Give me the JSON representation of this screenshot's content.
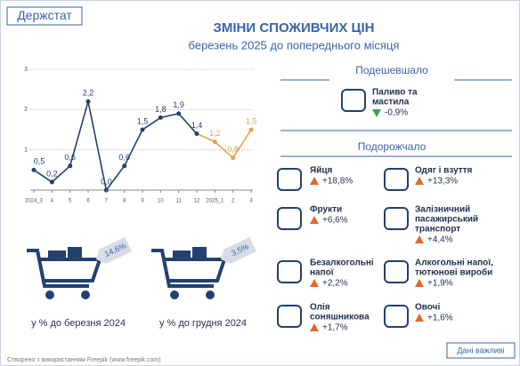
{
  "header": {
    "brand": "Держстат",
    "title": "ЗМІНИ СПОЖИВЧИХ ЦІН",
    "subtitle": "березень 2025 до попереднього місяця"
  },
  "chart_data": {
    "type": "line",
    "categories": [
      "2024_3",
      "4",
      "5",
      "6",
      "7",
      "8",
      "9",
      "10",
      "11",
      "12",
      "2025_1",
      "2",
      "3"
    ],
    "values": [
      0.5,
      0.2,
      0.6,
      2.2,
      0.0,
      0.6,
      1.5,
      1.8,
      1.9,
      1.4,
      1.2,
      0.8,
      1.5
    ],
    "value_labels": [
      "0,5",
      "0,2",
      "0,6",
      "2,2",
      "0,0",
      "0,6",
      "1,5",
      "1,8",
      "1,9",
      "1,4",
      "1,2",
      "0,8",
      "1,5"
    ],
    "colors": [
      "#23416e",
      "#23416e",
      "#23416e",
      "#23416e",
      "#23416e",
      "#23416e",
      "#23416e",
      "#23416e",
      "#23416e",
      "#23416e",
      "#e3a24f",
      "#e3a24f",
      "#e3a24f"
    ],
    "ylim": [
      0,
      3
    ],
    "yticks": [
      1,
      2,
      3
    ],
    "grid": true
  },
  "carts": [
    {
      "value": "14,6%",
      "label": "у % до березня 2024"
    },
    {
      "value": "3,5%",
      "label": "у % до грудня 2024"
    }
  ],
  "cheaper": {
    "title": "Подешевшало",
    "items": [
      {
        "name": [
          "Паливо та",
          "мастила"
        ],
        "change": "-0,9%"
      }
    ]
  },
  "pricier": {
    "title": "Подорожчало",
    "items": [
      {
        "name": [
          "Яйця"
        ],
        "change": "+18,8%"
      },
      {
        "name": [
          "Одяг і взуття"
        ],
        "change": "+13,3%"
      },
      {
        "name": [
          "Фрукти"
        ],
        "change": "+6,6%"
      },
      {
        "name": [
          "Залізничний",
          "пасажирський",
          "транспорт"
        ],
        "change": "+4,4%"
      },
      {
        "name": [
          "Безалкогольні",
          "напої"
        ],
        "change": "+2,2%"
      },
      {
        "name": [
          "Алкогольні напої,",
          "тютюнові вироби"
        ],
        "change": "+1,9%"
      },
      {
        "name": [
          "Олія",
          "соняшникова"
        ],
        "change": "+1,7%"
      },
      {
        "name": [
          "Овочі"
        ],
        "change": "+1,6%"
      }
    ]
  },
  "footer": {
    "credit": "Створено з використанням Freepik (www.freepik.com)",
    "button": "Дані важливі"
  }
}
